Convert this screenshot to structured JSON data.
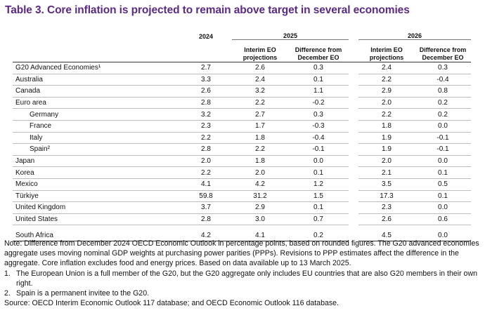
{
  "title": "Table 3. Core inflation is projected to remain above target in several economies",
  "headers": {
    "y2024": "2024",
    "y2025": "2025",
    "y2026": "2026",
    "interim": "Interim EO projections",
    "diff": "Difference from December EO"
  },
  "rows": [
    {
      "label": "G20 Advanced Economies¹",
      "v": [
        "2.7",
        "2.6",
        "0.3",
        "2.4",
        "0.3"
      ]
    },
    {
      "label": "Australia",
      "v": [
        "3.3",
        "2.4",
        "0.1",
        "2.2",
        "-0.4"
      ]
    },
    {
      "label": "Canada",
      "v": [
        "2.6",
        "3.2",
        "1.1",
        "2.9",
        "0.8"
      ]
    },
    {
      "label": "Euro area",
      "v": [
        "2.8",
        "2.2",
        "-0.2",
        "2.0",
        "0.2"
      ]
    },
    {
      "label": "Germany",
      "v": [
        "3.2",
        "2.7",
        "0.3",
        "2.2",
        "0.2"
      ]
    },
    {
      "label": "France",
      "v": [
        "2.3",
        "1.7",
        "-0.3",
        "1.8",
        "0.0"
      ]
    },
    {
      "label": "Italy",
      "v": [
        "2.2",
        "1.8",
        "-0.4",
        "1.9",
        "-0.1"
      ]
    },
    {
      "label": "Spain²",
      "v": [
        "2.8",
        "2.2",
        "-0.1",
        "1.9",
        "-0.1"
      ]
    },
    {
      "label": "Japan",
      "v": [
        "2.0",
        "1.8",
        "0.0",
        "2.0",
        "0.0"
      ]
    },
    {
      "label": "Korea",
      "v": [
        "2.2",
        "2.0",
        "0.1",
        "2.1",
        "0.1"
      ]
    },
    {
      "label": "Mexico",
      "v": [
        "4.1",
        "4.2",
        "1.2",
        "3.5",
        "0.5"
      ]
    },
    {
      "label": "Türkiye",
      "v": [
        "59.8",
        "31.2",
        "1.5",
        "17.3",
        "0.1"
      ]
    },
    {
      "label": "United Kingdom",
      "v": [
        "3.7",
        "2.9",
        "0.1",
        "2.3",
        "0.0"
      ]
    },
    {
      "label": "United States",
      "v": [
        "2.8",
        "3.0",
        "0.7",
        "2.6",
        "0.6"
      ]
    },
    {
      "label": "South Africa",
      "v": [
        "4.2",
        "4.1",
        "0.2",
        "4.5",
        "0.0"
      ]
    }
  ],
  "notes": {
    "main": "Note: Difference from December 2024 OECD Economic Outlook in percentage points, based on rounded figures. The G20 advanced economies aggregate uses moving nominal GDP weights at purchasing power parities (PPPs). Revisions to PPP estimates affect the difference in the aggregate. Core inflation excludes food and energy prices. Based on data available up to 13 March 2025.",
    "fn1_num": "1.",
    "fn1": "The European Union is a full member of the G20, but the G20 aggregate only includes EU countries that are also G20 members in their own right.",
    "fn2_num": "2.",
    "fn2": "Spain is a permanent invitee to the G20.",
    "source": "Source: OECD Interim Economic Outlook 117 database; and OECD Economic Outlook 116 database."
  }
}
